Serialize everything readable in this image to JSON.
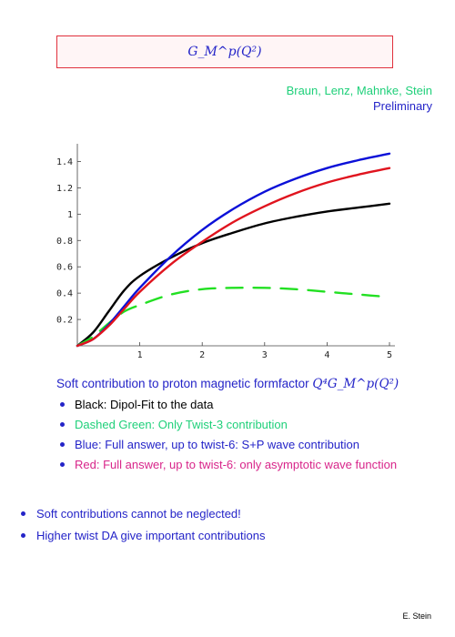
{
  "header": {
    "title": "G_M^p(Q²)",
    "authors": "Braun, Lenz, Mahnke, Stein",
    "status": "Preliminary"
  },
  "caption": {
    "text": "Soft contribution to proton magnetic formfactor ",
    "math": "Q⁴G_M^p(Q²)"
  },
  "legend": [
    {
      "text": "Black: Dipol-Fit to the data",
      "color": "#000000"
    },
    {
      "text": "Dashed Green: Only Twist-3 contribution",
      "color": "#1fd07a"
    },
    {
      "text": "Blue: Full answer, up to twist-6: S+P wave contribution",
      "color": "#2424c8"
    },
    {
      "text": "Red: Full answer, up to twist-6: only asymptotic wave function",
      "color": "#d8258a"
    }
  ],
  "bullets": [
    "Soft contributions cannot be neglected!",
    "Higher twist DA give important contributions"
  ],
  "footer": "E. Stein",
  "chart_data": {
    "type": "line",
    "xlim": [
      0,
      5
    ],
    "ylim": [
      0,
      1.5
    ],
    "xticks": [
      1,
      2,
      3,
      4,
      5
    ],
    "yticks": [
      0.2,
      0.4,
      0.6,
      0.8,
      1,
      1.2,
      1.4
    ],
    "xtick_labels": [
      "1",
      "2",
      "3",
      "4",
      "5"
    ],
    "ytick_labels": [
      "0.2",
      "0.4",
      "0.6",
      "0.8",
      "1",
      "1.2",
      "1.4"
    ],
    "series": [
      {
        "color": "#000000",
        "style": "solid",
        "x": [
          0,
          0.25,
          0.5,
          0.75,
          1.0,
          1.5,
          2.0,
          2.5,
          3.0,
          3.5,
          4.0,
          4.5,
          5.0
        ],
        "y": [
          0,
          0.1,
          0.26,
          0.42,
          0.53,
          0.67,
          0.78,
          0.86,
          0.93,
          0.98,
          1.02,
          1.05,
          1.08
        ]
      },
      {
        "color": "#22e022",
        "style": "dashed",
        "x": [
          0,
          0.25,
          0.5,
          0.75,
          1.0,
          1.5,
          2.0,
          2.5,
          3.0,
          3.5,
          4.0,
          4.5,
          5.0
        ],
        "y": [
          0,
          0.07,
          0.17,
          0.26,
          0.31,
          0.39,
          0.43,
          0.44,
          0.44,
          0.43,
          0.41,
          0.39,
          0.37
        ]
      },
      {
        "color": "#0b10d8",
        "style": "solid",
        "x": [
          0,
          0.25,
          0.5,
          0.75,
          1.0,
          1.5,
          2.0,
          2.5,
          3.0,
          3.5,
          4.0,
          4.5,
          5.0
        ],
        "y": [
          0,
          0.05,
          0.16,
          0.3,
          0.44,
          0.68,
          0.88,
          1.04,
          1.17,
          1.27,
          1.35,
          1.41,
          1.46
        ]
      },
      {
        "color": "#e0141e",
        "style": "solid",
        "x": [
          0,
          0.25,
          0.5,
          0.75,
          1.0,
          1.5,
          2.0,
          2.5,
          3.0,
          3.5,
          4.0,
          4.5,
          5.0
        ],
        "y": [
          0,
          0.05,
          0.15,
          0.28,
          0.41,
          0.62,
          0.79,
          0.94,
          1.06,
          1.16,
          1.24,
          1.3,
          1.35
        ]
      }
    ]
  }
}
